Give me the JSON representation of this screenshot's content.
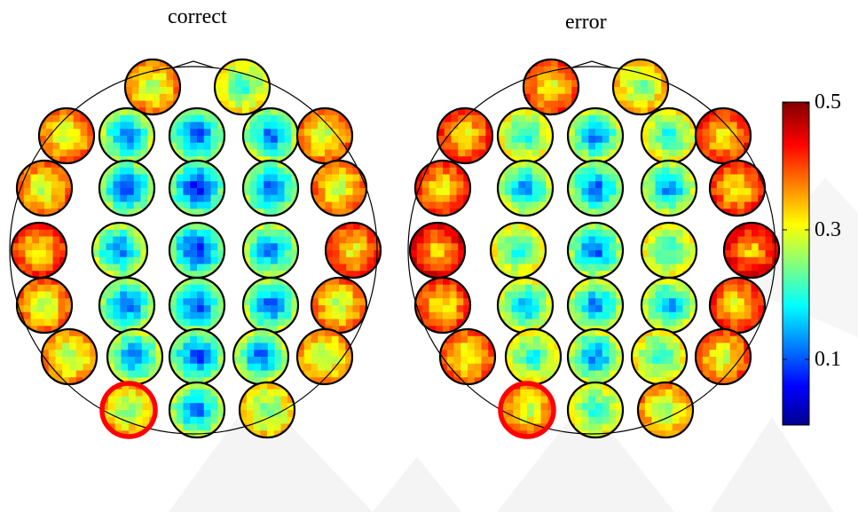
{
  "panels": [
    {
      "id": "correct",
      "title": "correct"
    },
    {
      "id": "error",
      "title": "error"
    }
  ],
  "colorbar": {
    "ticks": [
      "0.5",
      "0.3",
      "0.1"
    ],
    "colormap": "jet",
    "colors": [
      "#00008f",
      "#0000ff",
      "#00ffff",
      "#ffff00",
      "#ff0000",
      "#800000"
    ]
  },
  "highlight_color": "#ff0000"
}
